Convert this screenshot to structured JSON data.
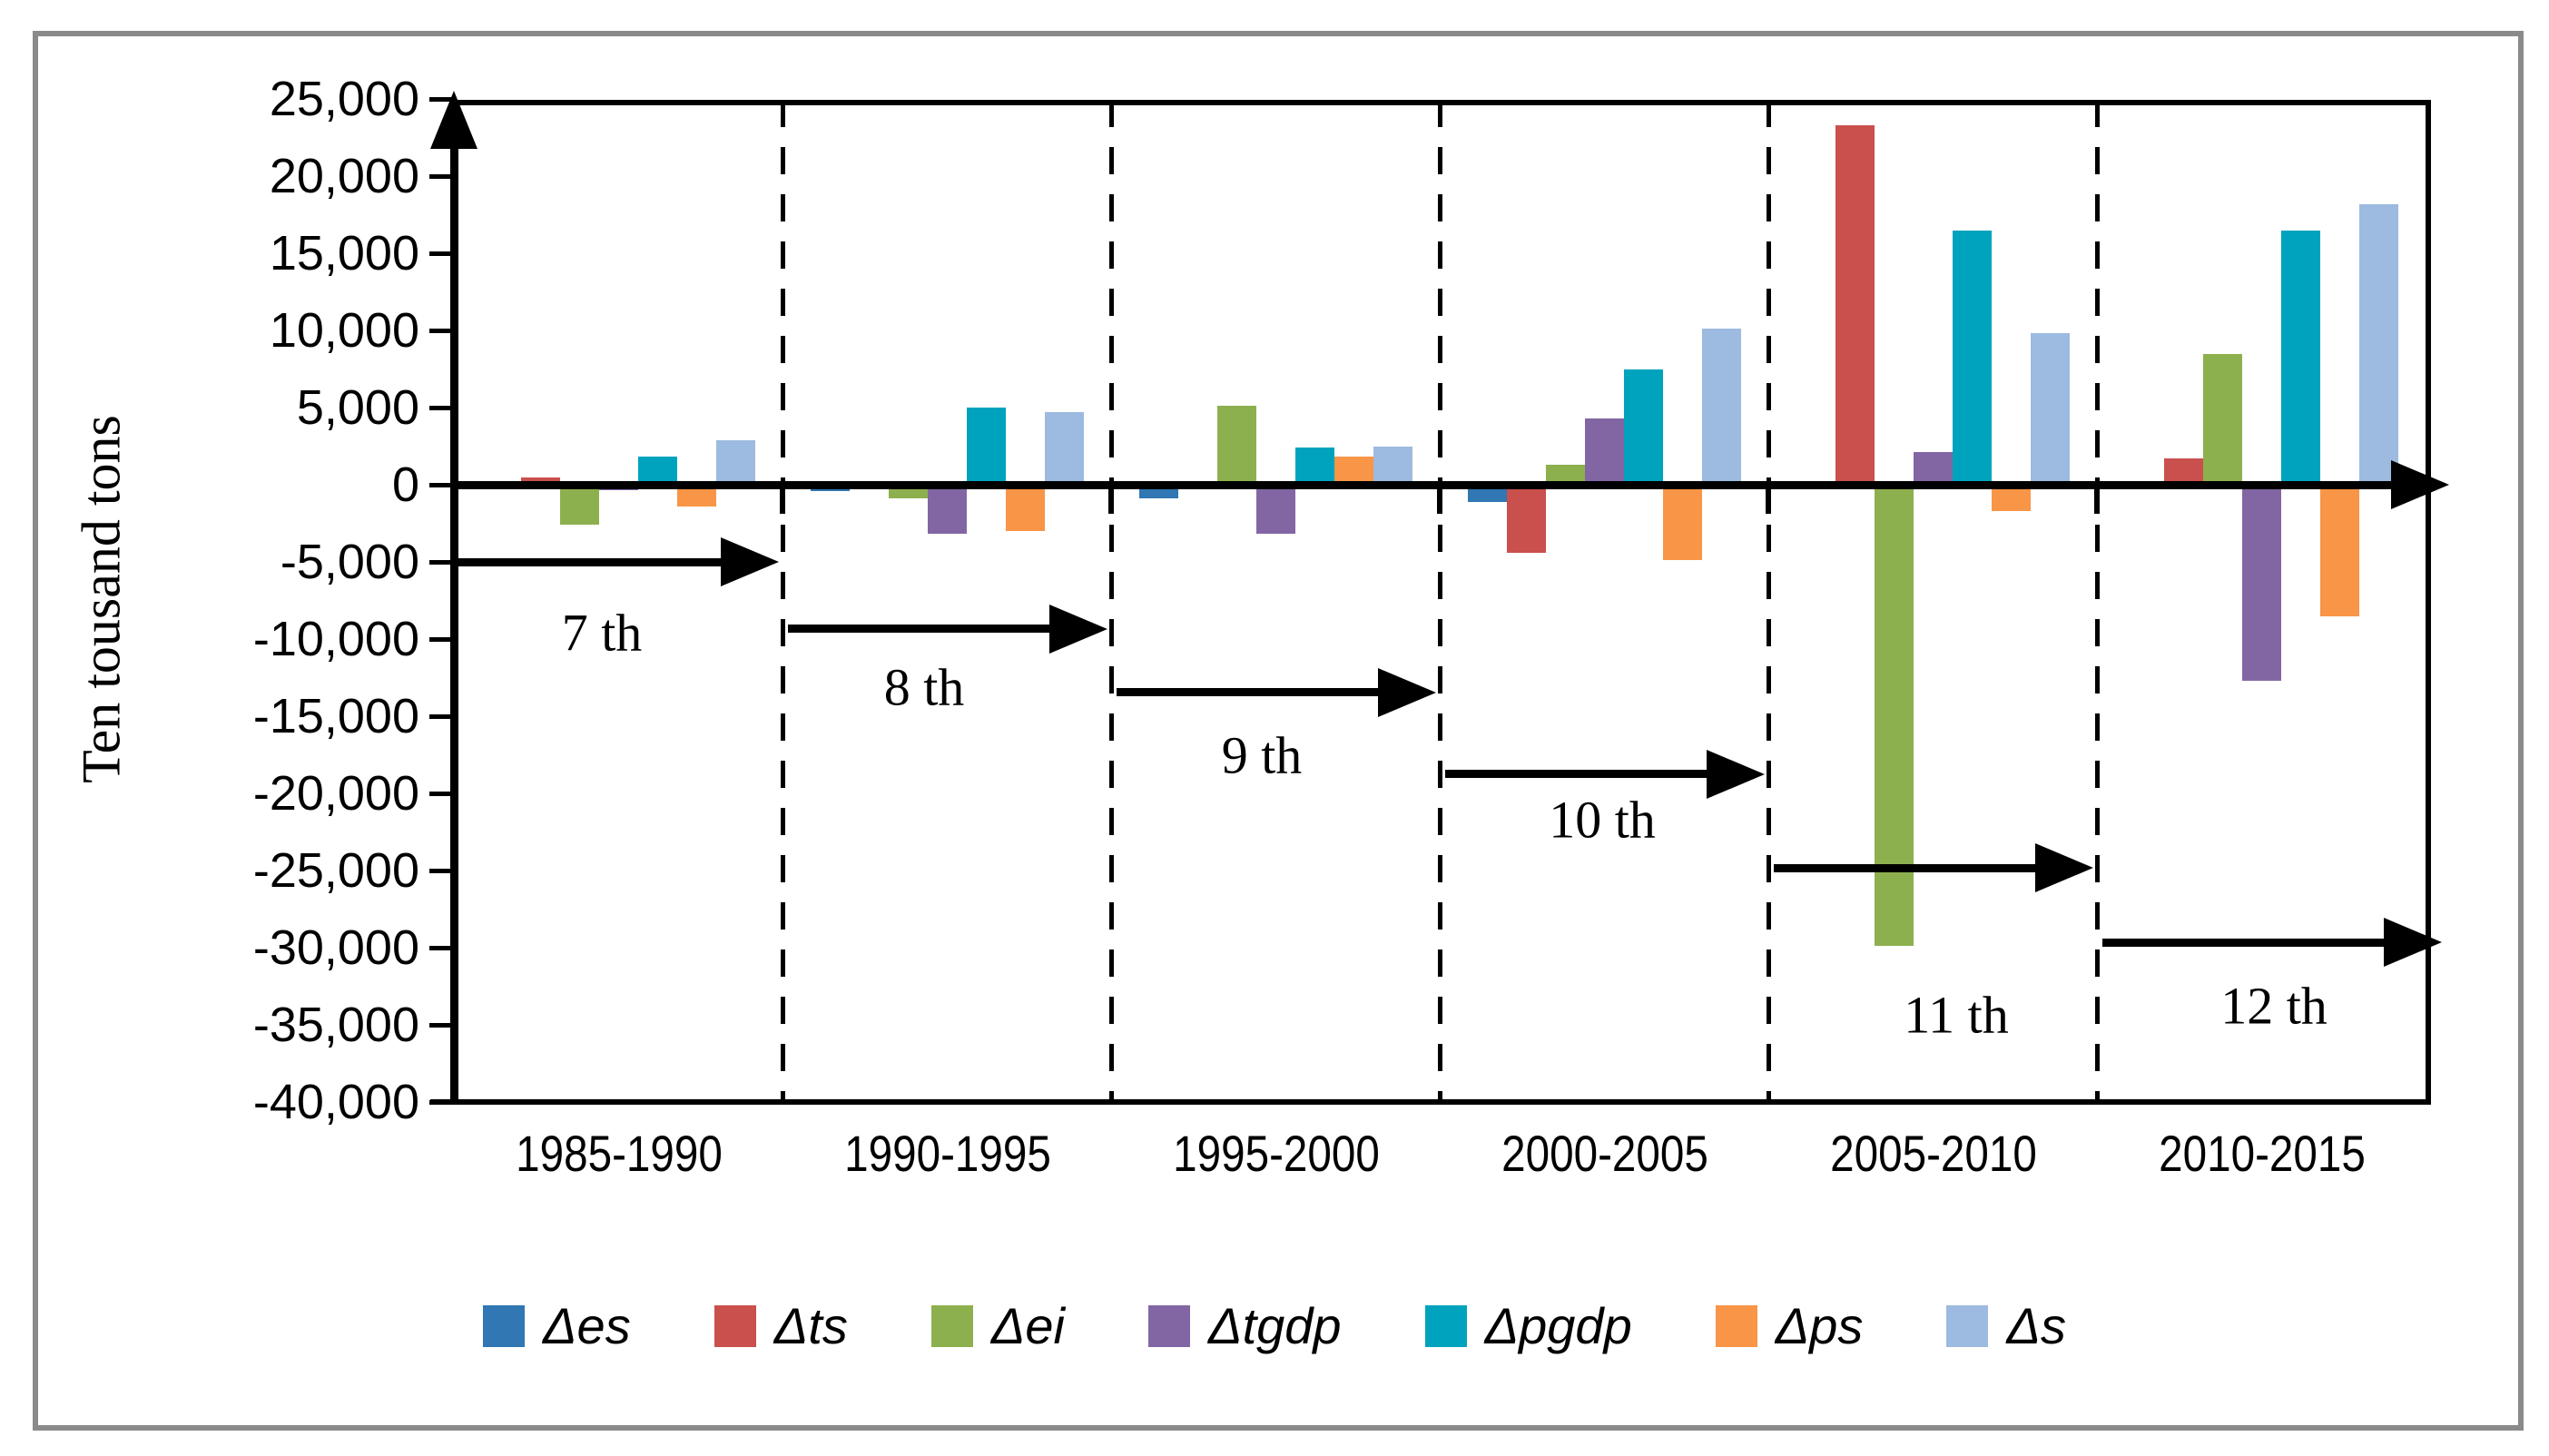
{
  "figure": {
    "background": "#ffffff",
    "frame_color": "#8a8a8a"
  },
  "axis": {
    "y_title": "Ten tousand tons",
    "y_tick_labels": [
      "25,000",
      "20,000",
      "15,000",
      "10,000",
      "5,000",
      "0",
      "-5,000",
      "-10,000",
      "-15,000",
      "-20,000",
      "-25,000",
      "-30,000",
      "-35,000",
      "-40,000"
    ],
    "y_tick_values": [
      25000,
      20000,
      15000,
      10000,
      5000,
      0,
      -5000,
      -10000,
      -15000,
      -20000,
      -25000,
      -30000,
      -35000,
      -40000
    ]
  },
  "chart_data": {
    "type": "bar",
    "title": "",
    "xlabel": "",
    "ylabel": "Ten tousand tons",
    "ylim": [
      -40000,
      25000
    ],
    "ytick_step": 5000,
    "grid": false,
    "legend_position": "bottom",
    "categories": [
      "1985-1990",
      "1990-1995",
      "1995-2000",
      "2000-2005",
      "2005-2010",
      "2010-2015"
    ],
    "series": [
      {
        "name": "Δes",
        "color": "#3077B3",
        "values": [
          0,
          -400,
          -900,
          -1100,
          0,
          0
        ]
      },
      {
        "name": "Δts",
        "color": "#C9504C",
        "values": [
          500,
          0,
          200,
          -4400,
          23300,
          1700
        ]
      },
      {
        "name": "Δei",
        "color": "#8DB04E",
        "values": [
          -2600,
          -900,
          5100,
          1300,
          -29900,
          8500
        ]
      },
      {
        "name": "Δtgdp",
        "color": "#8266A4",
        "values": [
          -350,
          -3200,
          -3200,
          4300,
          2100,
          -12700
        ]
      },
      {
        "name": "Δpgdp",
        "color": "#00A3BD",
        "values": [
          1800,
          5000,
          2400,
          7500,
          16500,
          16500
        ]
      },
      {
        "name": "Δps",
        "color": "#F89546",
        "values": [
          -1400,
          -3000,
          1800,
          -4900,
          -1700,
          -8500
        ]
      },
      {
        "name": "Δs",
        "color": "#9DBAE0",
        "values": [
          2900,
          4700,
          2500,
          10100,
          9800,
          18200
        ]
      }
    ],
    "annotations": [
      {
        "label": "7 th",
        "level": -5000
      },
      {
        "label": "8 th",
        "level": -9350
      },
      {
        "label": "9 th",
        "level": -13450
      },
      {
        "label": "10 th",
        "level": -18750
      },
      {
        "label": "11 th",
        "level": -24850
      },
      {
        "label": "12 th",
        "level": -29650
      }
    ]
  },
  "legend": {
    "items": [
      "Δes",
      "Δts",
      "Δei",
      "Δtgdp",
      "Δpgdp",
      "Δps",
      "Δs"
    ]
  }
}
